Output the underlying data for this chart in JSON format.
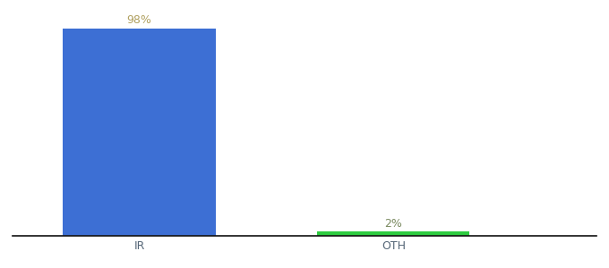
{
  "categories": [
    "IR",
    "OTH"
  ],
  "values": [
    98,
    2
  ],
  "bar_colors": [
    "#3d6fd4",
    "#2ecc40"
  ],
  "label_colors": [
    "#b0a060",
    "#7a8a60"
  ],
  "labels": [
    "98%",
    "2%"
  ],
  "ylim": [
    0,
    105
  ],
  "background_color": "#ffffff",
  "bar_width": 0.6,
  "figsize": [
    6.8,
    3.0
  ],
  "dpi": 100
}
